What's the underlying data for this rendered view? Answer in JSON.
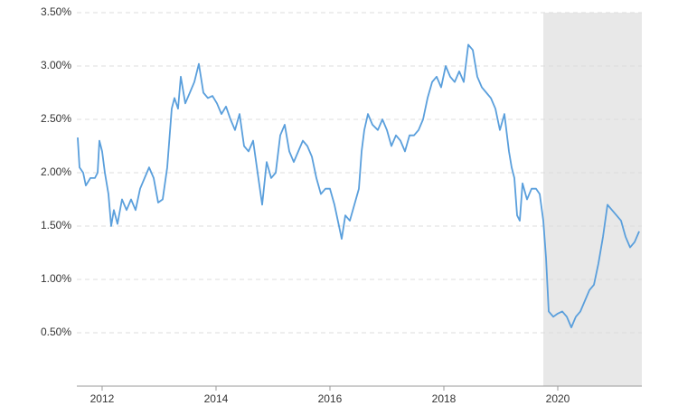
{
  "chart_data": {
    "type": "line",
    "x": [
      2011.571,
      2011.603,
      2011.667,
      2011.714,
      2011.794,
      2011.873,
      2011.921,
      2011.952,
      2012.0,
      2012.048,
      2012.111,
      2012.159,
      2012.206,
      2012.27,
      2012.349,
      2012.429,
      2012.508,
      2012.587,
      2012.667,
      2012.746,
      2012.825,
      2012.905,
      2012.984,
      2013.063,
      2013.143,
      2013.222,
      2013.27,
      2013.333,
      2013.381,
      2013.46,
      2013.54,
      2013.619,
      2013.698,
      2013.778,
      2013.857,
      2013.937,
      2014.016,
      2014.095,
      2014.175,
      2014.254,
      2014.333,
      2014.413,
      2014.492,
      2014.571,
      2014.651,
      2014.73,
      2014.81,
      2014.889,
      2014.968,
      2015.048,
      2015.127,
      2015.206,
      2015.286,
      2015.365,
      2015.444,
      2015.524,
      2015.603,
      2015.683,
      2015.762,
      2015.841,
      2015.921,
      2016.0,
      2016.079,
      2016.159,
      2016.206,
      2016.27,
      2016.349,
      2016.429,
      2016.508,
      2016.556,
      2016.603,
      2016.667,
      2016.746,
      2016.841,
      2016.921,
      2017.0,
      2017.079,
      2017.159,
      2017.238,
      2017.317,
      2017.397,
      2017.476,
      2017.556,
      2017.635,
      2017.714,
      2017.794,
      2017.873,
      2017.952,
      2018.032,
      2018.111,
      2018.19,
      2018.27,
      2018.349,
      2018.429,
      2018.508,
      2018.587,
      2018.667,
      2018.746,
      2018.825,
      2018.905,
      2018.984,
      2019.063,
      2019.143,
      2019.19,
      2019.238,
      2019.286,
      2019.333,
      2019.381,
      2019.46,
      2019.54,
      2019.619,
      2019.683,
      2019.746,
      2019.794,
      2019.841,
      2019.921,
      2020.0,
      2020.079,
      2020.159,
      2020.238,
      2020.317,
      2020.397,
      2020.476,
      2020.556,
      2020.635,
      2020.714,
      2020.794,
      2020.873,
      2020.952,
      2021.032,
      2021.111,
      2021.19,
      2021.27,
      2021.349,
      2021.429
    ],
    "series": [
      {
        "color": "#5a9fdc",
        "values": [
          2.33,
          2.05,
          2.0,
          1.88,
          1.95,
          1.95,
          2.0,
          2.3,
          2.2,
          2.0,
          1.8,
          1.5,
          1.65,
          1.52,
          1.75,
          1.65,
          1.75,
          1.65,
          1.85,
          1.95,
          2.05,
          1.95,
          1.72,
          1.75,
          2.05,
          2.6,
          2.7,
          2.6,
          2.9,
          2.65,
          2.75,
          2.85,
          3.02,
          2.75,
          2.7,
          2.72,
          2.65,
          2.55,
          2.62,
          2.5,
          2.4,
          2.55,
          2.25,
          2.2,
          2.3,
          2.0,
          1.7,
          2.1,
          1.95,
          2.0,
          2.35,
          2.45,
          2.2,
          2.1,
          2.2,
          2.3,
          2.25,
          2.15,
          1.95,
          1.8,
          1.85,
          1.85,
          1.7,
          1.5,
          1.38,
          1.6,
          1.55,
          1.7,
          1.85,
          2.2,
          2.4,
          2.55,
          2.45,
          2.4,
          2.5,
          2.4,
          2.25,
          2.35,
          2.3,
          2.2,
          2.35,
          2.35,
          2.4,
          2.5,
          2.7,
          2.85,
          2.9,
          2.8,
          3.0,
          2.9,
          2.85,
          2.95,
          2.85,
          3.2,
          3.15,
          2.9,
          2.8,
          2.75,
          2.7,
          2.6,
          2.4,
          2.55,
          2.2,
          2.05,
          1.95,
          1.6,
          1.55,
          1.9,
          1.75,
          1.85,
          1.85,
          1.8,
          1.55,
          1.2,
          0.7,
          0.65,
          0.68,
          0.7,
          0.65,
          0.55,
          0.65,
          0.7,
          0.8,
          0.9,
          0.95,
          1.15,
          1.4,
          1.7,
          1.65,
          1.6,
          1.55,
          1.4,
          1.3,
          1.35,
          1.45
        ]
      }
    ],
    "shaded": [
      2019.746,
      2021.476
    ],
    "shade_color": "#e8e8e8",
    "xlim": [
      2011.556,
      2021.476
    ],
    "xticks": [
      2012,
      2014,
      2016,
      2018,
      2020
    ],
    "ylim": [
      0,
      3.5
    ],
    "yticks": [
      {
        "value": 0.5,
        "label": "0.50%"
      },
      {
        "value": 1.0,
        "label": "1.00%"
      },
      {
        "value": 1.5,
        "label": "1.50%"
      },
      {
        "value": 2.0,
        "label": "2.00%"
      },
      {
        "value": 2.5,
        "label": "2.50%"
      },
      {
        "value": 3.0,
        "label": "3.00%"
      },
      {
        "value": 3.5,
        "label": "3.50%"
      }
    ],
    "grid": true
  }
}
